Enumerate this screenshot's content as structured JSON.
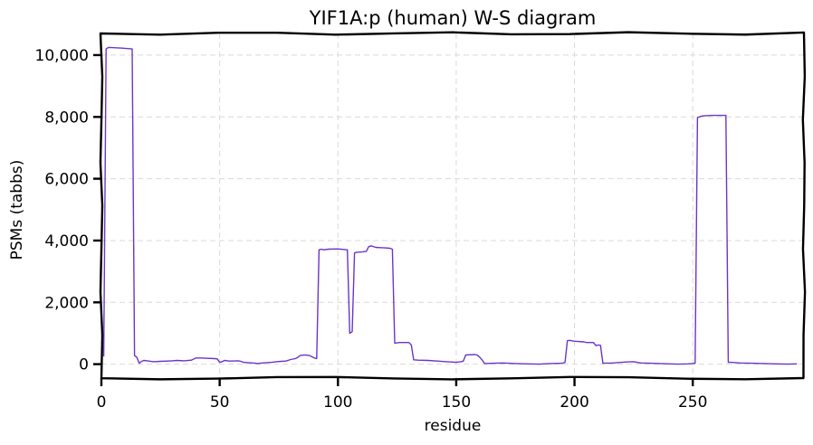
{
  "chart_data": {
    "type": "line",
    "title": "YIF1A:p (human) W-S diagram",
    "xlabel": "residue",
    "ylabel": "PSMs (tabbs)",
    "xlim": [
      0,
      297
    ],
    "ylim": [
      -450,
      10700
    ],
    "xticks": [
      0,
      50,
      100,
      150,
      200,
      250
    ],
    "xtick_labels": [
      "0",
      "50",
      "100",
      "150",
      "200",
      "250"
    ],
    "yticks": [
      0,
      2000,
      4000,
      6000,
      8000,
      10000
    ],
    "ytick_labels": [
      "0",
      "2,000",
      "4,000",
      "6,000",
      "8,000",
      "10,000"
    ],
    "grid": true,
    "colors": {
      "series": "#6a35c9"
    },
    "series": [
      {
        "x": [
          1,
          2,
          3,
          8,
          13,
          14,
          15,
          16,
          17,
          18,
          20,
          22,
          25,
          28,
          30,
          32,
          35,
          38,
          40,
          42,
          44,
          48,
          49,
          50,
          51,
          52,
          54,
          58,
          59,
          60,
          62,
          65,
          66,
          68,
          70,
          72,
          74,
          76,
          78,
          80,
          82,
          83,
          84,
          86,
          88,
          90,
          91,
          92,
          93,
          94,
          96,
          100,
          104,
          105,
          106,
          107,
          108,
          110,
          112,
          113,
          114,
          116,
          118,
          120,
          122,
          123,
          124,
          126,
          130,
          131,
          132,
          134,
          138,
          142,
          146,
          150,
          152,
          153,
          154,
          158,
          159,
          160,
          161,
          162,
          166,
          170,
          175,
          180,
          185,
          190,
          195,
          196,
          197,
          198,
          200,
          204,
          205,
          208,
          209,
          210,
          211,
          212,
          216,
          220,
          222,
          225,
          228,
          232,
          236,
          240,
          244,
          248,
          250,
          251,
          252,
          254,
          258,
          260,
          264,
          265,
          266,
          267,
          268,
          270,
          275,
          280,
          285,
          290,
          294
        ],
        "values": [
          250,
          10200,
          10250,
          10230,
          10200,
          280,
          220,
          30,
          90,
          120,
          100,
          80,
          90,
          100,
          110,
          120,
          110,
          130,
          200,
          200,
          190,
          180,
          170,
          60,
          80,
          120,
          100,
          110,
          90,
          60,
          50,
          30,
          20,
          40,
          50,
          60,
          80,
          90,
          100,
          150,
          180,
          220,
          280,
          300,
          280,
          200,
          180,
          3700,
          3720,
          3700,
          3720,
          3730,
          3700,
          1000,
          1050,
          3600,
          3620,
          3630,
          3650,
          3800,
          3830,
          3780,
          3770,
          3760,
          3750,
          3720,
          680,
          700,
          700,
          620,
          140,
          130,
          120,
          100,
          80,
          60,
          80,
          100,
          300,
          310,
          290,
          220,
          130,
          20,
          30,
          40,
          20,
          10,
          0,
          20,
          30,
          60,
          760,
          770,
          740,
          720,
          700,
          700,
          600,
          620,
          610,
          30,
          40,
          60,
          70,
          80,
          40,
          30,
          20,
          10,
          0,
          10,
          20,
          30,
          7980,
          8030,
          8050,
          8050,
          8050,
          60,
          60,
          55,
          50,
          40,
          30,
          20,
          10,
          0,
          10
        ]
      }
    ]
  }
}
